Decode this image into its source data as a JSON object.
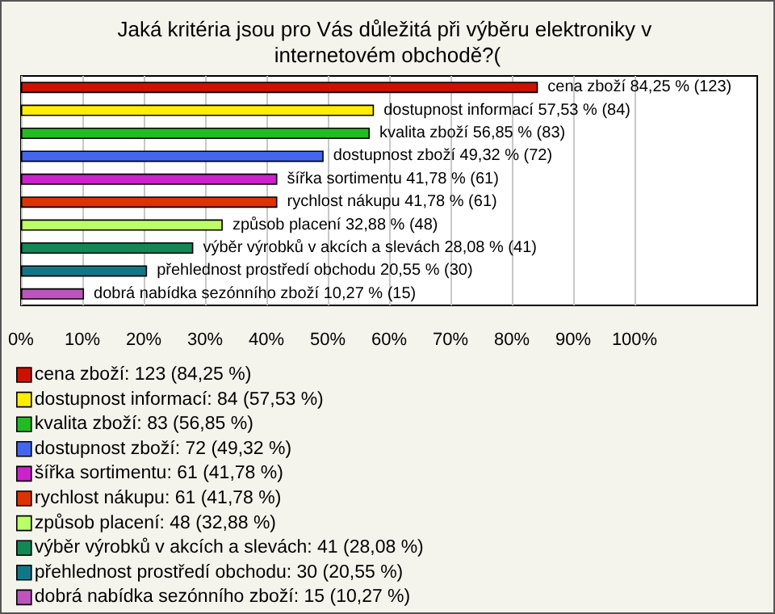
{
  "chart_data": {
    "type": "bar",
    "orientation": "horizontal",
    "stacked": true,
    "title": "Jaká kritéria jsou pro Vás důležitá při výběru elektroniky v internetovém obchodě?(",
    "categories": [
      null,
      null,
      null,
      null,
      null,
      null,
      null,
      null,
      null,
      null
    ],
    "series": [
      {
        "name": "cena zboží: 123 (84,25 %)",
        "color": "#cc1100",
        "values": [
          84.25,
          null,
          null,
          null,
          null,
          null,
          null,
          null,
          null,
          null
        ],
        "value_labels": [
          "cena zboží 84,25 % (123)",
          null,
          null,
          null,
          null,
          null,
          null,
          null,
          null,
          null
        ]
      },
      {
        "name": "dostupnost informací: 84 (57,53 %)",
        "color": "#ffee00",
        "values": [
          null,
          57.53,
          null,
          null,
          null,
          null,
          null,
          null,
          null,
          null
        ],
        "value_labels": [
          null,
          "dostupnost informací 57,53 % (84)",
          null,
          null,
          null,
          null,
          null,
          null,
          null,
          null
        ]
      },
      {
        "name": "kvalita zboží: 83 (56,85 %)",
        "color": "#22bb22",
        "values": [
          null,
          null,
          56.85,
          null,
          null,
          null,
          null,
          null,
          null,
          null
        ],
        "value_labels": [
          null,
          null,
          "kvalita zboží 56,85 % (83)",
          null,
          null,
          null,
          null,
          null,
          null,
          null
        ]
      },
      {
        "name": "dostupnost zboží: 72 (49,32 %)",
        "color": "#4466ee",
        "values": [
          null,
          null,
          null,
          49.32,
          null,
          null,
          null,
          null,
          null,
          null
        ],
        "value_labels": [
          null,
          null,
          null,
          "dostupnost zboží 49,32 % (72)",
          null,
          null,
          null,
          null,
          null,
          null
        ]
      },
      {
        "name": "šířka sortimentu: 61 (41,78 %)",
        "color": "#cc22cc",
        "values": [
          null,
          null,
          null,
          null,
          41.78,
          null,
          null,
          null,
          null,
          null
        ],
        "value_labels": [
          null,
          null,
          null,
          null,
          "šířka sortimentu 41,78 % (61)",
          null,
          null,
          null,
          null,
          null
        ]
      },
      {
        "name": "rychlost nákupu: 61 (41,78 %)",
        "color": "#dd3300",
        "values": [
          null,
          null,
          null,
          null,
          null,
          41.78,
          null,
          null,
          null,
          null
        ],
        "value_labels": [
          null,
          null,
          null,
          null,
          null,
          "rychlost nákupu 41,78 % (61)",
          null,
          null,
          null,
          null
        ]
      },
      {
        "name": "způsob placení: 48 (32,88 %)",
        "color": "#bbff66",
        "values": [
          null,
          null,
          null,
          null,
          null,
          null,
          32.88,
          null,
          null,
          null
        ],
        "value_labels": [
          null,
          null,
          null,
          null,
          null,
          null,
          "způsob placení 32,88 % (48)",
          null,
          null,
          null
        ]
      },
      {
        "name": "výběr výrobků v akcích a slevách: 41 (28,08 %)",
        "color": "#118855",
        "values": [
          null,
          null,
          null,
          null,
          null,
          null,
          null,
          28.08,
          null,
          null
        ],
        "value_labels": [
          null,
          null,
          null,
          null,
          null,
          null,
          null,
          "výběr výrobků v akcích a slevách 28,08 % (41)",
          null,
          null
        ]
      },
      {
        "name": "přehlednost prostředí obchodu: 30 (20,55 %)",
        "color": "#117788",
        "values": [
          null,
          null,
          null,
          null,
          null,
          null,
          null,
          null,
          20.55,
          null
        ],
        "value_labels": [
          null,
          null,
          null,
          null,
          null,
          null,
          null,
          null,
          "přehlednost prostředí obchodu 20,55 % (30)",
          null
        ]
      },
      {
        "name": "dobrá nabídka sezónního zboží: 15 (10,27 %)",
        "color": "#bb55bb",
        "values": [
          null,
          null,
          null,
          null,
          null,
          null,
          null,
          null,
          null,
          10.27
        ],
        "value_labels": [
          null,
          null,
          null,
          null,
          null,
          null,
          null,
          null,
          null,
          "dobrá nabídka sezónního zboží 10,27 % (15)"
        ]
      }
    ],
    "xlim": [
      0,
      120
    ],
    "xticks": [
      {
        "value": 0,
        "label": "0%"
      },
      {
        "value": 10,
        "label": "10%"
      },
      {
        "value": 20,
        "label": "20%"
      },
      {
        "value": 30,
        "label": "30%"
      },
      {
        "value": 40,
        "label": "40%"
      },
      {
        "value": 50,
        "label": "50%"
      },
      {
        "value": 60,
        "label": "60%"
      },
      {
        "value": 70,
        "label": "70%"
      },
      {
        "value": 80,
        "label": "80%"
      },
      {
        "value": 90,
        "label": "90%"
      },
      {
        "value": 100,
        "label": "100%"
      }
    ],
    "grid": "x",
    "tick_labels": "x",
    "legend": "bottom left"
  }
}
